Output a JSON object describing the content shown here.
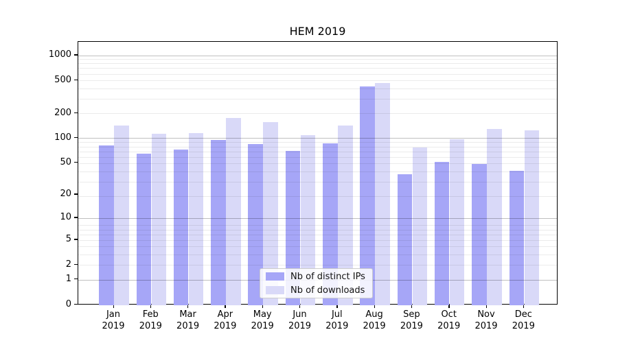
{
  "chart_data": {
    "type": "bar",
    "title": "HEM 2019",
    "categories": [
      "Jan",
      "Feb",
      "Mar",
      "Apr",
      "May",
      "Jun",
      "Jul",
      "Aug",
      "Sep",
      "Oct",
      "Nov",
      "Dec"
    ],
    "category_year": "2019",
    "series": [
      {
        "name": "Nb of distinct IPs",
        "color": "#a6a6f7",
        "values": [
          82,
          65,
          72,
          94,
          85,
          70,
          87,
          420,
          36,
          51,
          48,
          40
        ]
      },
      {
        "name": "Nb of downloads",
        "color": "#d9d9f8",
        "values": [
          142,
          113,
          116,
          175,
          155,
          108,
          142,
          460,
          77,
          97,
          130,
          123
        ]
      }
    ],
    "y_ticks": [
      0,
      1,
      2,
      5,
      10,
      20,
      50,
      100,
      200,
      500,
      1000
    ],
    "y_scale": "log10(value+1)",
    "ylim": [
      0,
      1460
    ],
    "xlabel": "",
    "ylabel": "",
    "grid": "horizontal, major at 1/10/100/1000 plus log minors",
    "legend_position": "lower center",
    "colors": {
      "background": "#ffffff",
      "spine": "#000000",
      "major_grid": "#c0c0c0",
      "minor_grid": "#ececec",
      "text": "#000000"
    }
  }
}
